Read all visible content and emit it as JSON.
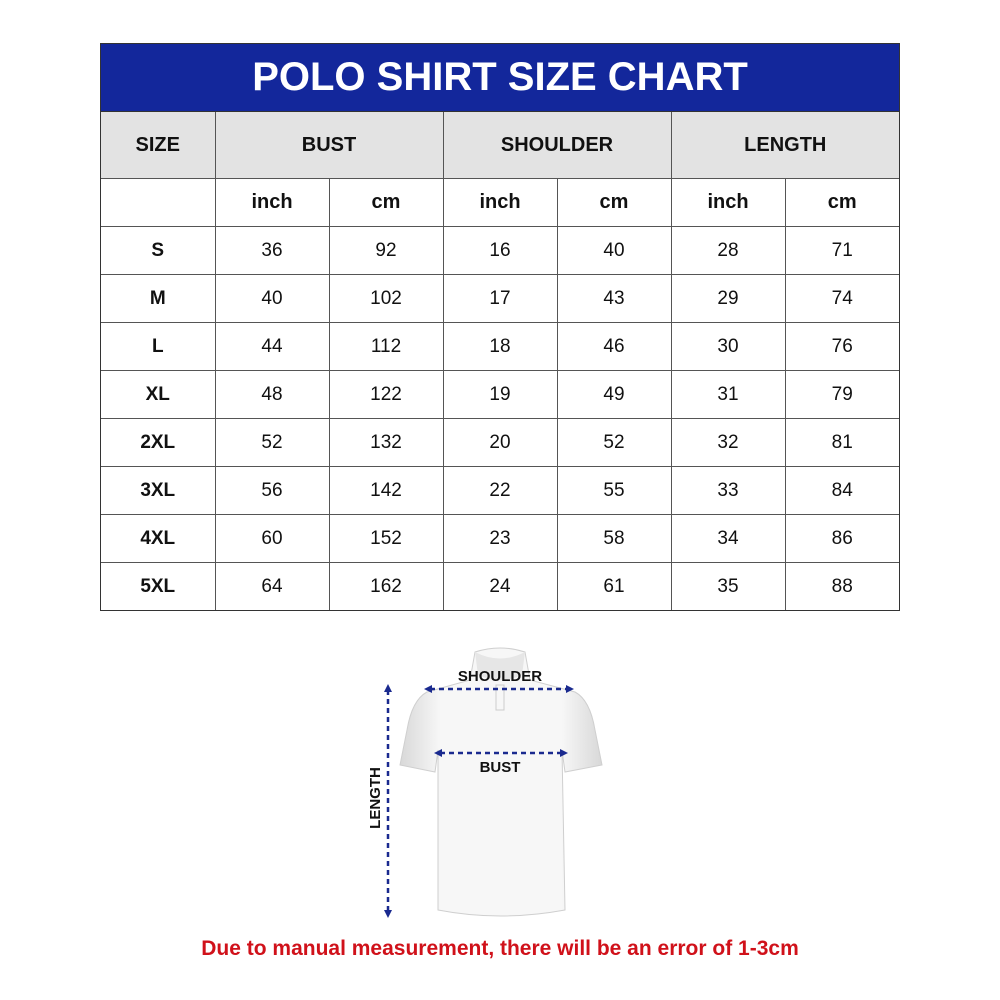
{
  "title": "POLO SHIRT SIZE CHART",
  "headers": {
    "size": "SIZE",
    "bust": "BUST",
    "shoulder": "SHOULDER",
    "length": "LENGTH"
  },
  "units": [
    "inch",
    "cm",
    "inch",
    "cm",
    "inch",
    "cm"
  ],
  "rows": [
    {
      "size": "S",
      "values": [
        "36",
        "92",
        "16",
        "40",
        "28",
        "71"
      ]
    },
    {
      "size": "M",
      "values": [
        "40",
        "102",
        "17",
        "43",
        "29",
        "74"
      ]
    },
    {
      "size": "L",
      "values": [
        "44",
        "112",
        "18",
        "46",
        "30",
        "76"
      ]
    },
    {
      "size": "XL",
      "values": [
        "48",
        "122",
        "19",
        "49",
        "31",
        "79"
      ]
    },
    {
      "size": "2XL",
      "values": [
        "52",
        "132",
        "20",
        "52",
        "32",
        "81"
      ]
    },
    {
      "size": "3XL",
      "values": [
        "56",
        "142",
        "22",
        "55",
        "33",
        "84"
      ]
    },
    {
      "size": "4XL",
      "values": [
        "60",
        "152",
        "23",
        "58",
        "34",
        "86"
      ]
    },
    {
      "size": "5XL",
      "values": [
        "64",
        "162",
        "24",
        "61",
        "35",
        "88"
      ]
    }
  ],
  "diagram": {
    "shoulder": "SHOULDER",
    "bust": "BUST",
    "length": "LENGTH"
  },
  "note": "Due to manual measurement, there will be an error of 1-3cm",
  "colors": {
    "header": "#13279b",
    "note": "#d0111a",
    "arrows": "#1a2a8f"
  }
}
